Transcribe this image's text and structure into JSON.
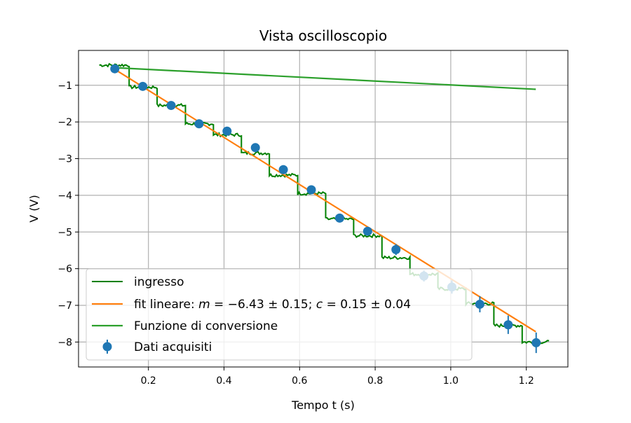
{
  "chart_data": {
    "type": "line",
    "title": "Vista oscilloscopio",
    "xlabel": "Tempo t (s)",
    "ylabel": "V (V)",
    "xlim": [
      0.015,
      1.31
    ],
    "ylim": [
      -8.68,
      -0.05
    ],
    "grid": true,
    "legend_position": "lower-left",
    "x_ticks": [
      0.2,
      0.4,
      0.6,
      0.8,
      1.0,
      1.2
    ],
    "x_tick_labels": [
      "0.2",
      "0.4",
      "0.6",
      "0.8",
      "1.0",
      "1.2"
    ],
    "y_ticks": [
      -1,
      -2,
      -3,
      -4,
      -5,
      -6,
      -7,
      -8
    ],
    "y_tick_labels": [
      "−1",
      "−2",
      "−3",
      "−4",
      "−5",
      "−6",
      "−7",
      "−8"
    ],
    "series": [
      {
        "name": "ingresso",
        "kind": "step",
        "color": "#008000",
        "x_start": 0.07,
        "x_end": 1.26,
        "step_edges": [
          0.149,
          0.223,
          0.298,
          0.372,
          0.446,
          0.52,
          0.595,
          0.669,
          0.743,
          0.818,
          0.892,
          0.966,
          1.04,
          1.114,
          1.189
        ],
        "levels": [
          -0.45,
          -1.05,
          -1.55,
          -2.05,
          -2.35,
          -2.85,
          -3.45,
          -3.95,
          -4.65,
          -5.1,
          -5.7,
          -6.15,
          -6.55,
          -6.95,
          -7.55,
          -8.0
        ]
      },
      {
        "name": "fit lineare: m = −6.43 ± 0.15; c = 0.15 ± 0.04",
        "name_parts": [
          "fit lineare: ",
          "m",
          " = −6.43 ± 0.15; ",
          "c",
          " = 0.15 ± 0.04"
        ],
        "kind": "line",
        "color": "#ff7f0e",
        "x": [
          0.11,
          1.225
        ],
        "y": [
          -0.56,
          -7.72
        ]
      },
      {
        "name": "Funzione di conversione",
        "kind": "line",
        "color": "#2ca02c",
        "x": [
          0.11,
          1.225
        ],
        "y": [
          -0.52,
          -1.11
        ]
      },
      {
        "name": "Dati acquisiti",
        "kind": "errorbar",
        "color": "#1f77b4",
        "x": [
          0.111,
          0.185,
          0.26,
          0.334,
          0.408,
          0.483,
          0.557,
          0.631,
          0.706,
          0.78,
          0.855,
          0.929,
          1.003,
          1.077,
          1.152,
          1.226
        ],
        "y": [
          -0.55,
          -1.03,
          -1.55,
          -2.05,
          -2.25,
          -2.7,
          -3.3,
          -3.85,
          -4.62,
          -4.98,
          -5.48,
          -6.2,
          -6.5,
          -6.97,
          -7.53,
          -8.02
        ],
        "yerr": [
          0.1,
          0.1,
          0.1,
          0.1,
          0.1,
          0.12,
          0.12,
          0.12,
          0.12,
          0.12,
          0.15,
          0.15,
          0.18,
          0.22,
          0.25,
          0.28
        ]
      }
    ]
  }
}
